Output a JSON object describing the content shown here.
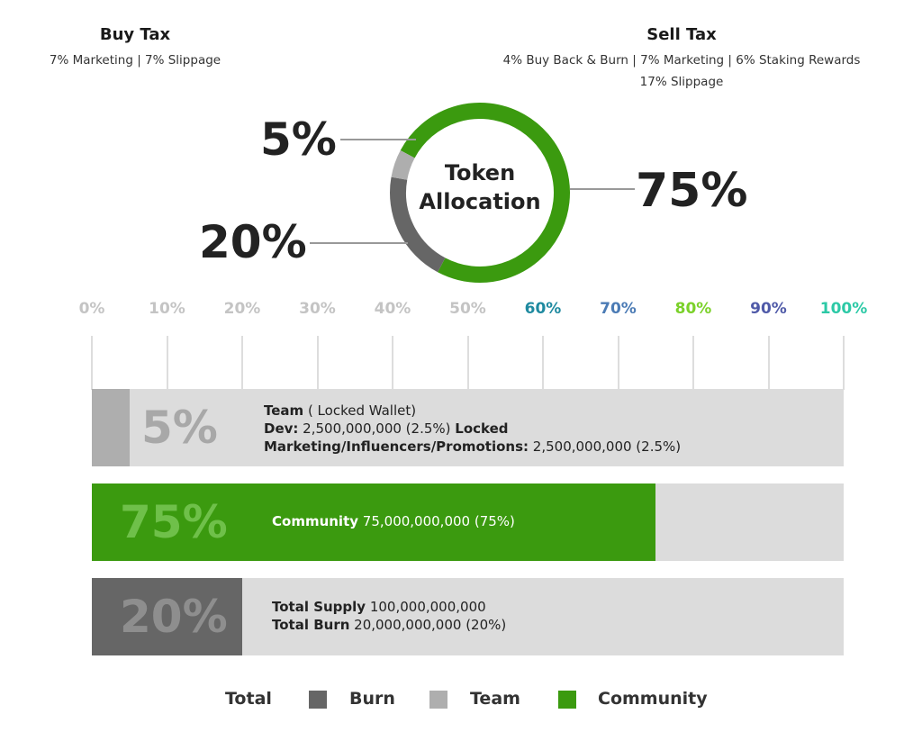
{
  "buy_tax": {
    "title": "Buy Tax",
    "detail": "7% Marketing | 7% Slippage"
  },
  "sell_tax": {
    "title": "Sell Tax",
    "detail_line1": "4% Buy Back & Burn | 7% Marketing | 6% Staking Rewards",
    "detail_line2": "17% Slippage"
  },
  "colors": {
    "community": "#3b9a0f",
    "team": "#aeaeae",
    "burn": "#666666",
    "bar_background": "#dcdcdc"
  },
  "chart_data": [
    {
      "type": "pie",
      "title_line1": "Token",
      "title_line2": "Allocation",
      "slices": [
        {
          "name": "Community",
          "value": 75,
          "label": "75%",
          "color": "#3b9a0f"
        },
        {
          "name": "Burn",
          "value": 20,
          "label": "20%",
          "color": "#666666"
        },
        {
          "name": "Team",
          "value": 5,
          "label": "5%",
          "color": "#aeaeae"
        }
      ]
    },
    {
      "type": "bar",
      "orientation": "horizontal",
      "xlim": [
        0,
        100
      ],
      "ticks": [
        {
          "label": "0%",
          "value": 0,
          "color": "#c4c4c4"
        },
        {
          "label": "10%",
          "value": 10,
          "color": "#c4c4c4"
        },
        {
          "label": "20%",
          "value": 20,
          "color": "#c4c4c4"
        },
        {
          "label": "30%",
          "value": 30,
          "color": "#c4c4c4"
        },
        {
          "label": "40%",
          "value": 40,
          "color": "#c4c4c4"
        },
        {
          "label": "50%",
          "value": 50,
          "color": "#c4c4c4"
        },
        {
          "label": "60%",
          "value": 60,
          "color": "#1f8aa0"
        },
        {
          "label": "70%",
          "value": 70,
          "color": "#4b7bb5"
        },
        {
          "label": "80%",
          "value": 80,
          "color": "#7bd12a"
        },
        {
          "label": "90%",
          "value": 90,
          "color": "#4f5aa8"
        },
        {
          "label": "100%",
          "value": 100,
          "color": "#2cc9a6"
        }
      ],
      "bars": [
        {
          "name": "Team",
          "value": 5,
          "label": "5%",
          "fill_color": "#aeaeae",
          "label_color": "#a8a8a8",
          "lines": [
            [
              {
                "text": "Team",
                "bold": true
              },
              {
                "text": " ( Locked Wallet)",
                "bold": false
              }
            ],
            [
              {
                "text": "Dev:",
                "bold": true
              },
              {
                "text": " 2,500,000,000 (2.5%) ",
                "bold": false
              },
              {
                "text": "Locked",
                "bold": true
              }
            ],
            [
              {
                "text": "Marketing/Influencers/Promotions:",
                "bold": true
              },
              {
                "text": " 2,500,000,000 (2.5%)",
                "bold": false
              }
            ]
          ]
        },
        {
          "name": "Community",
          "value": 75,
          "label": "75%",
          "fill_color": "#3b9a0f",
          "label_color": "#6fc04a",
          "lines": [
            [
              {
                "text": "Community",
                "bold": true
              },
              {
                "text": " 75,000,000,000 (75%)",
                "bold": false
              }
            ]
          ]
        },
        {
          "name": "Burn",
          "value": 20,
          "label": "20%",
          "fill_color": "#666666",
          "label_color": "#8e8e8e",
          "lines": [
            [
              {
                "text": "Total Supply",
                "bold": true
              },
              {
                "text": " 100,000,000,000",
                "bold": false
              }
            ],
            [
              {
                "text": "Total Burn",
                "bold": true
              },
              {
                "text": " 20,000,000,000 (20%)",
                "bold": false
              }
            ]
          ]
        }
      ]
    }
  ],
  "legend": {
    "total_label": "Total",
    "items": [
      {
        "name": "burn",
        "label": "Burn",
        "color": "#666666"
      },
      {
        "name": "team",
        "label": "Team",
        "color": "#aeaeae"
      },
      {
        "name": "community",
        "label": "Community",
        "color": "#3b9a0f"
      }
    ]
  }
}
